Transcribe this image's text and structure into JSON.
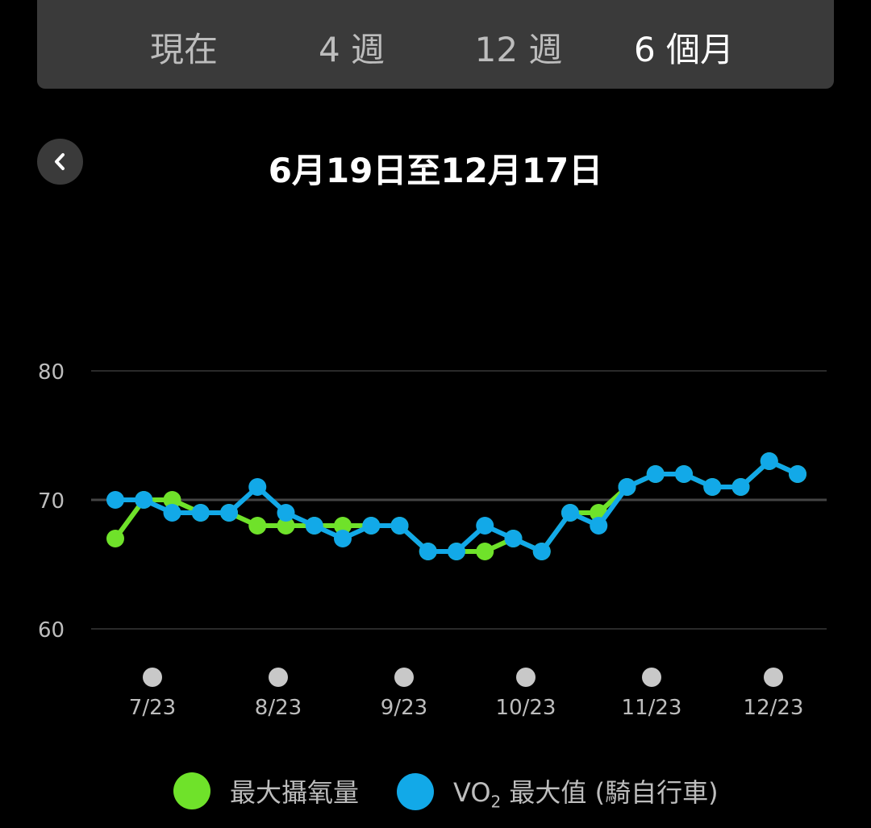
{
  "tabs": [
    {
      "label": "現在"
    },
    {
      "label": "4 週"
    },
    {
      "label": "12 週"
    },
    {
      "label": "6 個月",
      "selected": true
    }
  ],
  "date_range": "6月19日至12月17日",
  "back_icon": "chevron-left-icon",
  "chart_data": {
    "type": "line",
    "ylim": [
      60,
      80
    ],
    "yticks": [
      "60",
      "70",
      "80"
    ],
    "grid": true,
    "xticks": [
      "7/23",
      "8/23",
      "9/23",
      "10/23",
      "11/23",
      "12/23"
    ],
    "legend_position": "bottom",
    "series": [
      {
        "name": "最大攝氧量",
        "color": "#6fe22a",
        "values": [
          67,
          70,
          70,
          69,
          69,
          68,
          68,
          68,
          68,
          68,
          68,
          66,
          66,
          66,
          67,
          66,
          69,
          69,
          71,
          72,
          72,
          71,
          71,
          73,
          72
        ]
      },
      {
        "name": "VO₂ 最大值 (騎自行車)",
        "color": "#12a9e8",
        "values": [
          70,
          70,
          69,
          69,
          69,
          71,
          69,
          68,
          67,
          68,
          68,
          66,
          66,
          68,
          67,
          66,
          69,
          68,
          71,
          72,
          72,
          71,
          71,
          73,
          72
        ]
      }
    ]
  },
  "legend": [
    {
      "label": "最大攝氧量",
      "color": "#6fe22a"
    },
    {
      "label_main": "VO",
      "label_sub": "2",
      "label_rest": " 最大值 (騎自行車)",
      "color": "#12a9e8"
    }
  ]
}
